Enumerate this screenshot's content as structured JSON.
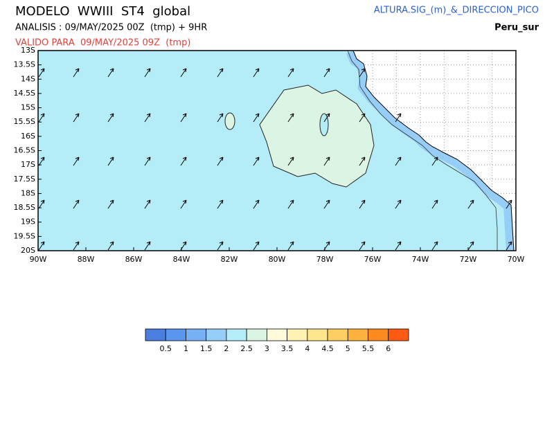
{
  "header": {
    "title": "MODELO  WWIII  ST4  global",
    "analysis": "ANALISIS : 09/MAY/2025 00Z  (tmp) + 9HR",
    "valid": "VALIDO PARA  09/MAY/2025 09Z  (tmp)",
    "variable": "ALTURA.SIG_(m)_&_DIRECCION_PICO",
    "region": "Peru_sur"
  },
  "map": {
    "lat_labels": [
      "13S",
      "13.5S",
      "14S",
      "14.5S",
      "15S",
      "15.5S",
      "16S",
      "16.5S",
      "17S",
      "17.5S",
      "18S",
      "18.5S",
      "19S",
      "19.5S",
      "20S"
    ],
    "lon_labels": [
      "90W",
      "88W",
      "86W",
      "84W",
      "82W",
      "80W",
      "78W",
      "76W",
      "74W",
      "72W",
      "70W"
    ]
  },
  "colorbar": {
    "values": [
      0.5,
      1,
      1.5,
      2,
      2.5,
      3,
      3.5,
      4,
      4.5,
      5,
      5.5,
      6
    ],
    "colors": [
      "#4a7fe0",
      "#5b96ee",
      "#78b0f5",
      "#96cef8",
      "#b4ecf8",
      "#dcf4e3",
      "#fefadc",
      "#fef3b4",
      "#fde68c",
      "#fdcf63",
      "#fdb23e",
      "#fd8a1f",
      "#fd5a14"
    ]
  }
}
